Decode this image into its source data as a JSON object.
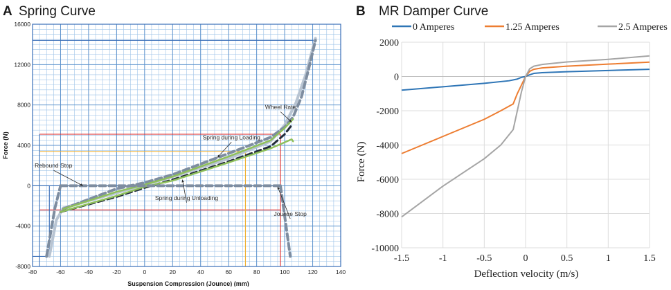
{
  "panels": {
    "a": {
      "letter": "A",
      "title": "Spring Curve"
    },
    "b": {
      "letter": "B",
      "title": "MR Damper Curve"
    }
  },
  "chart_data": [
    {
      "type": "line",
      "title": "Spring Curve",
      "xlabel": "Suspension Compression (Jounce) (mm)",
      "ylabel": "Force (N)",
      "xlim": [
        -80,
        140
      ],
      "ylim": [
        -8000,
        16000
      ],
      "xticks": [
        -80,
        -60,
        -40,
        -20,
        0,
        20,
        40,
        60,
        80,
        100,
        120,
        140
      ],
      "yticks": [
        -8000,
        -4000,
        0,
        4000,
        8000,
        12000,
        16000
      ],
      "grid": true,
      "annotations": [
        {
          "text": "Wheel Rate",
          "x": 97,
          "y": 7600,
          "arrow_to": [
            105,
            6300
          ]
        },
        {
          "text": "Spring during Loading",
          "x": 62,
          "y": 4600,
          "arrow_to": [
            52,
            2800
          ]
        },
        {
          "text": "Rebound Stop",
          "x": -65,
          "y": 1800,
          "arrow_to": [
            -44,
            0
          ]
        },
        {
          "text": "Spring during Unloading",
          "x": 30,
          "y": -1400,
          "arrow_to": [
            27,
            600
          ]
        },
        {
          "text": "Jounce Stop",
          "x": 104,
          "y": -3000,
          "arrow_to": [
            95,
            -100
          ]
        }
      ],
      "reference_lines": [
        {
          "color": "#dd2a2a",
          "points": [
            [
              -75,
              5100
            ],
            [
              97,
              5100
            ]
          ]
        },
        {
          "color": "#dd2a2a",
          "points": [
            [
              -75,
              -2400
            ],
            [
              97,
              -2400
            ]
          ]
        },
        {
          "color": "#dd2a2a",
          "points": [
            [
              97,
              5100
            ],
            [
              97,
              -8000
            ]
          ]
        },
        {
          "color": "#f0b030",
          "points": [
            [
              -75,
              3400
            ],
            [
              72,
              3400
            ]
          ]
        },
        {
          "color": "#f0b030",
          "points": [
            [
              72,
              3400
            ],
            [
              72,
              -8000
            ]
          ]
        },
        {
          "color": "#f0b030",
          "points": [
            [
              -80,
              -8000
            ],
            [
              72,
              -8000
            ]
          ]
        },
        {
          "color": "#3a6fb8",
          "points": [
            [
              -80,
              0
            ],
            [
              97,
              0
            ]
          ]
        },
        {
          "color": "#3a6fb8",
          "points": [
            [
              -80,
              14400
            ],
            [
              122,
              14400
            ]
          ]
        },
        {
          "color": "#3a6fb8",
          "points": [
            [
              -68,
              0
            ],
            [
              -68,
              -7000
            ]
          ]
        },
        {
          "color": "#3a6fb8",
          "points": [
            [
              -80,
              -7000
            ],
            [
              -68,
              -7000
            ]
          ]
        },
        {
          "color": "#3a6fb8",
          "points": [
            [
              -75,
              -8000
            ],
            [
              -75,
              5100
            ]
          ]
        }
      ],
      "series": [
        {
          "color": "#b8c4d2",
          "dash": false,
          "width": 4,
          "points": [
            [
              -68,
              -7000
            ],
            [
              -63,
              -3400
            ],
            [
              -58,
              -2200
            ],
            [
              -20,
              -700
            ],
            [
              20,
              900
            ],
            [
              60,
              2700
            ],
            [
              90,
              4400
            ],
            [
              100,
              6000
            ],
            [
              108,
              8200
            ],
            [
              115,
              11000
            ],
            [
              122,
              14600
            ]
          ]
        },
        {
          "color": "#7e8da0",
          "dash": true,
          "width": 4,
          "points": [
            [
              -58,
              -2300
            ],
            [
              -20,
              -300
            ],
            [
              0,
              300
            ],
            [
              20,
              1100
            ],
            [
              60,
              3200
            ],
            [
              90,
              4800
            ],
            [
              100,
              5800
            ],
            [
              106,
              6800
            ],
            [
              112,
              8800
            ],
            [
              117,
              11500
            ],
            [
              122,
              14400
            ]
          ]
        },
        {
          "color": "#232c3a",
          "dash": true,
          "width": 3,
          "points": [
            [
              -60,
              -2600
            ],
            [
              -20,
              -1100
            ],
            [
              0,
              -200
            ],
            [
              20,
              600
            ],
            [
              60,
              2400
            ],
            [
              90,
              3900
            ],
            [
              100,
              5100
            ],
            [
              105,
              6000
            ]
          ]
        },
        {
          "color": "#8fc05b",
          "dash": false,
          "width": 2.5,
          "points": [
            [
              -58,
              -2300
            ],
            [
              -20,
              -600
            ],
            [
              0,
              100
            ],
            [
              20,
              900
            ],
            [
              60,
              2900
            ],
            [
              90,
              4500
            ],
            [
              100,
              5700
            ],
            [
              106,
              6600
            ]
          ]
        },
        {
          "color": "#8fc05b",
          "dash": false,
          "width": 2.5,
          "points": [
            [
              -60,
              -2600
            ],
            [
              -20,
              -1000
            ],
            [
              0,
              -100
            ],
            [
              20,
              500
            ],
            [
              60,
              2300
            ],
            [
              90,
              3700
            ],
            [
              100,
              4300
            ],
            [
              105,
              4600
            ],
            [
              106,
              4400
            ]
          ]
        },
        {
          "color": "#7e8da0",
          "dash": true,
          "width": 4,
          "points": [
            [
              -70,
              -7000
            ],
            [
              -64,
              -2200
            ],
            [
              -60,
              0
            ]
          ]
        },
        {
          "color": "#7e8da0",
          "dash": true,
          "width": 4,
          "points": [
            [
              -60,
              0
            ],
            [
              97,
              0
            ]
          ]
        },
        {
          "color": "#7e8da0",
          "dash": true,
          "width": 4,
          "points": [
            [
              97,
              0
            ],
            [
              104,
              -7000
            ]
          ]
        }
      ]
    },
    {
      "type": "line",
      "title": "MR Damper Curve",
      "xlabel": "Deflection velocity  (m/s)",
      "ylabel": "Force (N)",
      "xlim": [
        -1.5,
        1.5
      ],
      "ylim": [
        -10000,
        2000
      ],
      "xticks": [
        "-1.5",
        "-1",
        "-0.5",
        "0",
        "0.5",
        "1",
        "1.5"
      ],
      "yticks": [
        "2000",
        "0",
        "-2000",
        "-4000",
        "-6000",
        "-8000",
        "-10000"
      ],
      "grid": true,
      "legend": "top",
      "series": [
        {
          "name": "0 Amperes",
          "color": "#2e75b6",
          "x": [
            -1.5,
            -1.0,
            -0.5,
            -0.2,
            -0.1,
            -0.05,
            0,
            0.05,
            0.1,
            0.2,
            0.5,
            1.0,
            1.5
          ],
          "y": [
            -800,
            -600,
            -400,
            -250,
            -150,
            -50,
            0,
            100,
            180,
            220,
            280,
            350,
            420
          ]
        },
        {
          "name": "1.25 Amperes",
          "color": "#ed7d31",
          "x": [
            -1.5,
            -1.0,
            -0.5,
            -0.3,
            -0.15,
            -0.1,
            -0.05,
            0,
            0.05,
            0.1,
            0.2,
            0.5,
            1.0,
            1.5
          ],
          "y": [
            -4500,
            -3500,
            -2500,
            -2000,
            -1600,
            -1000,
            -500,
            0,
            300,
            420,
            500,
            600,
            720,
            840
          ]
        },
        {
          "name": "2.5 Amperes",
          "color": "#a5a5a5",
          "x": [
            -1.5,
            -1.0,
            -0.5,
            -0.3,
            -0.15,
            -0.1,
            -0.05,
            0,
            0.05,
            0.1,
            0.2,
            0.5,
            1.0,
            1.5
          ],
          "y": [
            -8200,
            -6400,
            -4800,
            -4000,
            -3100,
            -2000,
            -900,
            0,
            450,
            600,
            700,
            850,
            1000,
            1200
          ]
        }
      ]
    }
  ]
}
